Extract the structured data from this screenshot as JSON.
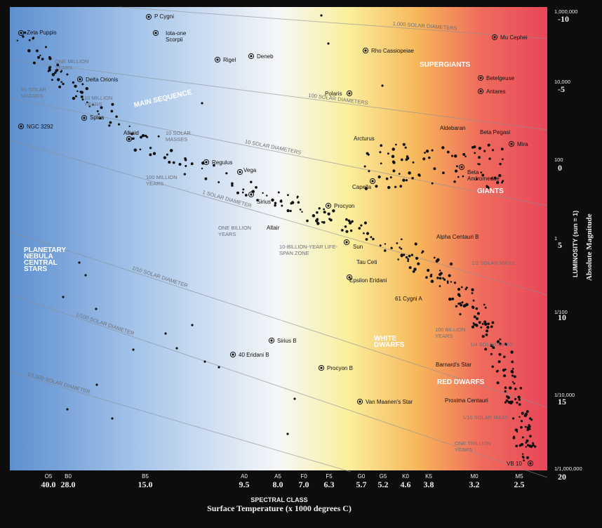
{
  "spectral_axis": {
    "title": "SPECTRAL CLASS",
    "subtitle": "Surface Temperature (x 1000 degrees C)",
    "classes": [
      {
        "class": "O5",
        "temperature": "40.0"
      },
      {
        "class": "B0",
        "temperature": "28.0"
      },
      {
        "class": "B5",
        "temperature": "15.0"
      },
      {
        "class": "A0",
        "temperature": "9.5"
      },
      {
        "class": "A5",
        "temperature": "8.0"
      },
      {
        "class": "F0",
        "temperature": "7.0"
      },
      {
        "class": "F5",
        "temperature": "6.3"
      },
      {
        "class": "G0",
        "temperature": "5.7"
      },
      {
        "class": "G5",
        "temperature": "5.2"
      },
      {
        "class": "K0",
        "temperature": "4.6"
      },
      {
        "class": "K5",
        "temperature": "3.8"
      },
      {
        "class": "M0",
        "temperature": "3.2"
      },
      {
        "class": "M5",
        "temperature": "2.5"
      }
    ]
  },
  "luminosity_axis": {
    "title": "LUMINOSITY (sun = 1)",
    "ticks": [
      "1,000,000",
      "10,000",
      "100",
      "1",
      "1/100",
      "1/10,000",
      "1/1,000,000"
    ]
  },
  "magnitude_axis": {
    "title": "Absolute Magnitude",
    "ticks": [
      "-10",
      "-5",
      "0",
      "5",
      "10",
      "15",
      "20"
    ]
  },
  "regions": [
    "SUPERGIANTS",
    "GIANTS",
    "MAIN SEQUENCE",
    "WHITE DWARFS",
    "RED DWARFS",
    "PLANETARY NEBULA CENTRAL STARS"
  ],
  "diameter_lines": [
    "1,000 SOLAR DIAMETERS",
    "100 SOLAR DIAMETERS",
    "10 SOLAR DIAMETERS",
    "1 SOLAR DIAMETER",
    "1/10 SOLAR DIAMETER",
    "1/100 SOLAR DIAMETER",
    "1/1,000 SOLAR DIAMETER"
  ],
  "mass_labels": [
    "50 SOLAR MASSES",
    "10 SOLAR MASSES",
    "1/2 SOLAR MASS",
    "1/4 SOLAR MASS",
    "1/10 SOLAR MASS"
  ],
  "age_labels": [
    "ONE MILLION YEARS",
    "10 MILLION YEARS",
    "100 MILLION YEARS",
    "ONE BILLION YEARS",
    "10-BILLION-YEAR LIFE-SPAN ZONE",
    "100 BILLION YEARS",
    "ONE TRILLION YEARS"
  ],
  "stars": [
    "Zeta Puppis",
    "P Cygni",
    "Iota-one Scorpii",
    "Rigel",
    "Deneb",
    "Delta Orionis",
    "Spica",
    "NGC 3292",
    "Alkaid",
    "Regulus",
    "Vega",
    "Sirius",
    "Altair",
    "Procyon",
    "Sun",
    "Tau Ceti",
    "Epsilon Eridani",
    "61 Cygni A",
    "Alpha Centauri B",
    "Capella",
    "Arcturus",
    "Polaris",
    "Rho Cassiopeiae",
    "Mu Cephei",
    "Betelgeuse",
    "Antares",
    "Aldebaran",
    "Beta Pegasi",
    "Mira",
    "Beta Andromedae",
    "Sirius B",
    "40 Eridani B",
    "Procyon B",
    "Van Maanen's Star",
    "Barnard's Star",
    "Proxima Centauri",
    "VB 10"
  ]
}
